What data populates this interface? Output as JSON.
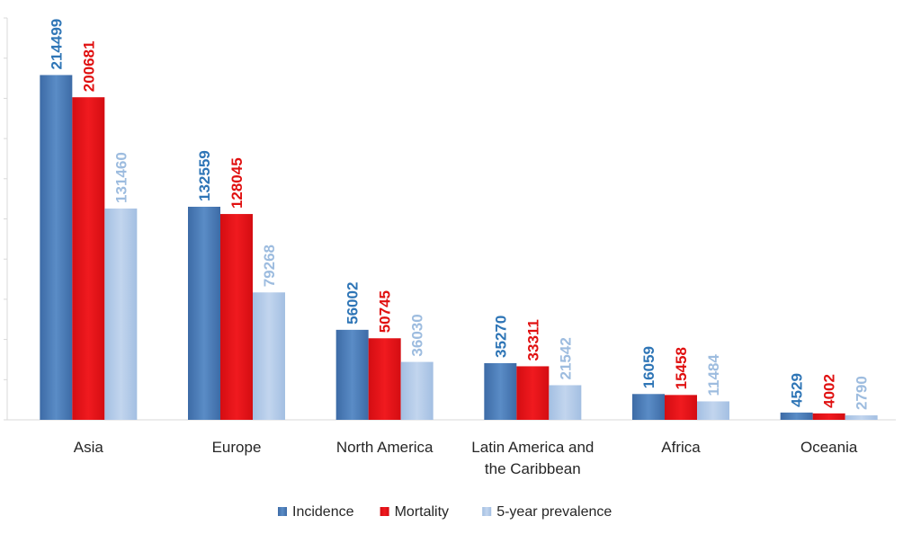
{
  "chart_data": {
    "type": "bar",
    "title": "",
    "xlabel": "",
    "ylabel": "",
    "ylim": [
      0,
      250000
    ],
    "grid": false,
    "legend_position": "bottom",
    "categories": [
      "Asia",
      "Europe",
      "North America",
      "Latin America and the Caribbean",
      "Africa",
      "Oceania"
    ],
    "category_lines": [
      [
        "Asia"
      ],
      [
        "Europe"
      ],
      [
        "North America"
      ],
      [
        "Latin America and",
        "the Caribbean"
      ],
      [
        "Africa"
      ],
      [
        "Oceania"
      ]
    ],
    "series": [
      {
        "name": "Incidence",
        "color": "#4a7ab3",
        "label_color": "#2e75b6",
        "label_weight": "bold",
        "values": [
          214499,
          132559,
          56002,
          35270,
          16059,
          4529
        ]
      },
      {
        "name": "Mortality",
        "color": "#e8141b",
        "label_color": "#e01010",
        "label_weight": "bold",
        "values": [
          200681,
          128045,
          50745,
          33311,
          15458,
          4002
        ]
      },
      {
        "name": "5-year prevalence",
        "color": "#aec6e6",
        "label_color": "#9dbcdf",
        "label_weight": "normal",
        "values": [
          131460,
          79268,
          36030,
          21542,
          11484,
          2790
        ]
      }
    ]
  }
}
